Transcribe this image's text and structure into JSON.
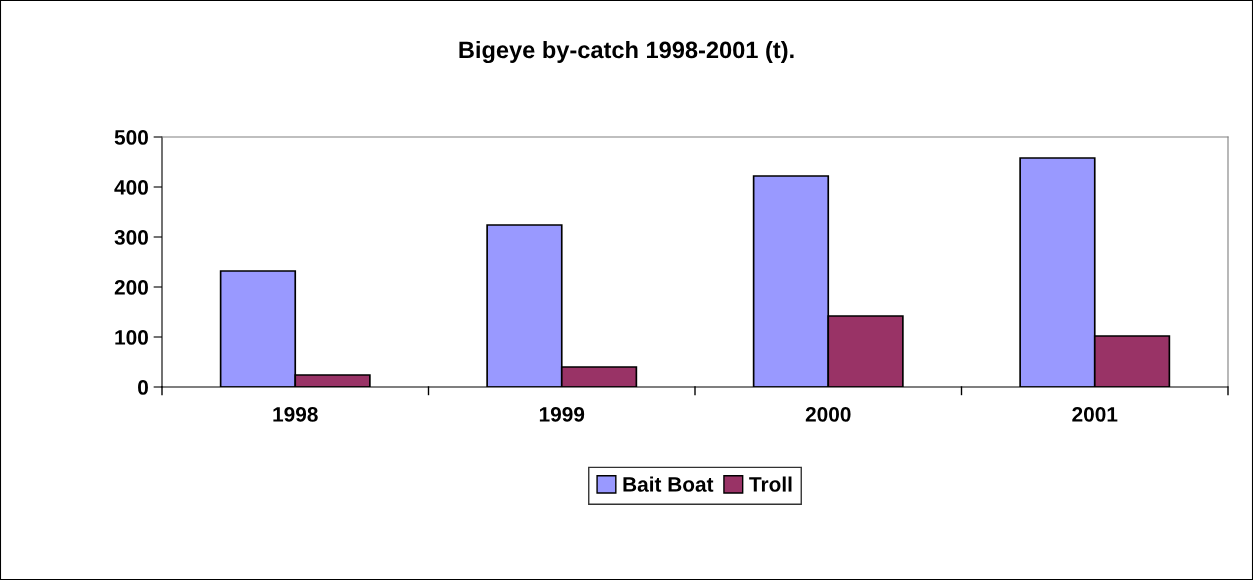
{
  "chart_data": {
    "type": "bar",
    "title": "Bigeye by-catch 1998-2001 (t).",
    "categories": [
      "1998",
      "1999",
      "2000",
      "2001"
    ],
    "series": [
      {
        "name": "Bait Boat",
        "color": "#9999ff",
        "values": [
          232,
          324,
          422,
          458
        ]
      },
      {
        "name": "Troll",
        "color": "#993366",
        "values": [
          24,
          40,
          142,
          102
        ]
      }
    ],
    "ylim": [
      0,
      500
    ],
    "yticks": [
      0,
      100,
      200,
      300,
      400,
      500
    ],
    "grid": false,
    "legend": "bottom"
  }
}
